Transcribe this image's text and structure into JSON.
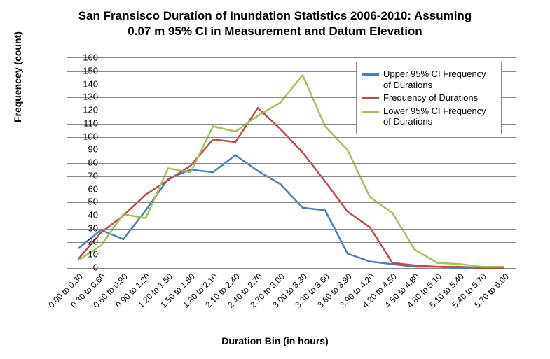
{
  "chart": {
    "type": "line",
    "title_line1": "San Fransisco Duration of Inundation Statistics 2006-2010: Assuming",
    "title_line2": "0.07 m 95% CI in Measurement and Datum Elevation",
    "title_fontsize": 17,
    "ylabel": "Frequencey (count)",
    "xlabel": "Duration Bin (in hours)",
    "label_fontsize": 14,
    "ylim": [
      0,
      160
    ],
    "ytick_step": 10,
    "tick_fontsize": 13,
    "categories": [
      "0.00 to 0.30",
      "0.30 to 0.60",
      "0.60 to 0.90",
      "0.90 to 1.20",
      "1.20 to 1.50",
      "1.50 to 1.80",
      "1.80 to 2.10",
      "2.10 to 2.40",
      "2.40 to 2.70",
      "2.70 to 3.00",
      "3.00 to 3.30",
      "3.30 to 3.60",
      "3.60 to 3.90",
      "3.90 to 4.20",
      "4.20 to 4.50",
      "4.50 to 4.80",
      "4.80 to 5.10",
      "5.10 to 5.40",
      "5.40 to 5.70",
      "5.70 to 6.00"
    ],
    "series": [
      {
        "name": "Upper 95% CI Frequency of Durations",
        "color": "#4a7ebb",
        "line_width": 2.5,
        "values": [
          15,
          29,
          22,
          44,
          68,
          75,
          73,
          86,
          74,
          64,
          46,
          44,
          11,
          5,
          3,
          1,
          1,
          0,
          0,
          0
        ]
      },
      {
        "name": "Frequency of Durations",
        "color": "#be4b48",
        "line_width": 2.5,
        "values": [
          7,
          27,
          40,
          56,
          67,
          78,
          98,
          96,
          122,
          106,
          88,
          66,
          43,
          31,
          4,
          2,
          1,
          1,
          0,
          0
        ]
      },
      {
        "name": "Lower 95% CI Frequency of Durations",
        "color": "#a0c35b",
        "line_width": 2.5,
        "values": [
          6,
          17,
          41,
          38,
          76,
          73,
          108,
          104,
          116,
          126,
          147,
          108,
          90,
          54,
          42,
          14,
          4,
          3,
          1,
          1
        ]
      }
    ],
    "background_color": "#ffffff",
    "grid_color": "#888888",
    "legend_position": "top-right"
  }
}
